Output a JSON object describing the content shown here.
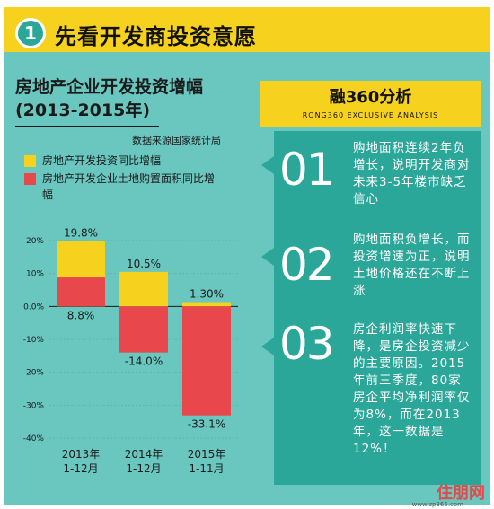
{
  "header": {
    "badge": "1",
    "title": "先看开发商投资意愿"
  },
  "chart_data": {
    "type": "bar",
    "title": [
      "房地产企业开发投资增幅",
      "(2013-2015年)"
    ],
    "source": "数据来源国家统计局",
    "categories": [
      "2013年\n1-12月",
      "2014年\n1-12月",
      "2015年\n1-11月"
    ],
    "series": [
      {
        "name": "房地产开发投资同比增幅",
        "values": [
          19.8,
          10.5,
          1.3
        ],
        "color": "#f6d21e"
      },
      {
        "name": "房地产开发企业土地购置面积同比增幅",
        "values": [
          8.8,
          -14.0,
          -33.1
        ],
        "color": "#e8474b"
      }
    ],
    "value_labels": [
      [
        "19.8%",
        "10.5%",
        "1.30%"
      ],
      [
        "8.8%",
        "-14.0%",
        "-33.1%"
      ]
    ],
    "yticks": [
      "20%",
      "10%",
      "0.0%",
      "-10%",
      "-20%",
      "-30%",
      "-40%"
    ],
    "ytick_values": [
      20,
      10,
      0,
      -10,
      -20,
      -30,
      -40
    ],
    "ylim": [
      -40,
      20
    ],
    "legend_position": "top-left"
  },
  "analysis": {
    "title": "融360分析",
    "subtitle": "RONG360 EXCLUSIVE ANALYSIS",
    "cards": [
      {
        "num": "01",
        "text": "购地面积连续2年负增长，说明开发商对未来3-5年楼市缺乏信心"
      },
      {
        "num": "02",
        "text": "购地面积负增长，而投资增速为正，说明土地价格还在不断上涨"
      },
      {
        "num": "03",
        "text": "房企利润率快速下降，是房企投资减少的主要原因。2015年前三季度，80家房企平均净利润率仅为8%，而在2013年，这一数据是12%！"
      }
    ]
  },
  "watermark": {
    "brand": "住朋网",
    "url": "www.zp365.com"
  }
}
